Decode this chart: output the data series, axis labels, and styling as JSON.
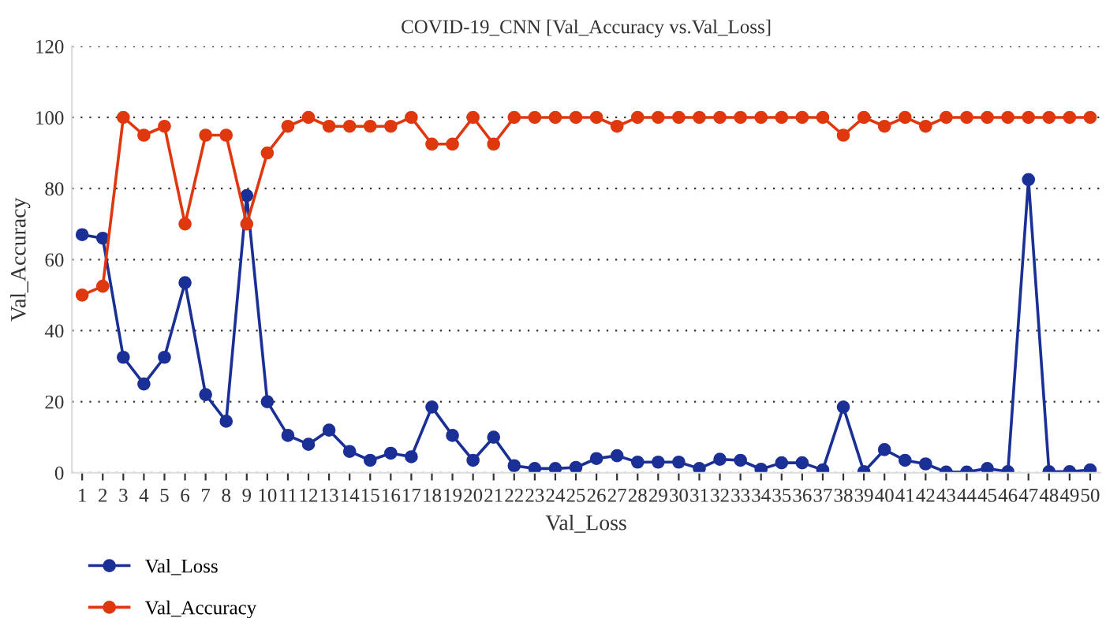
{
  "chart_data": {
    "type": "line",
    "title": "COVID-19_CNN [Val_Accuracy vs.Val_Loss]",
    "xlabel": "Val_Loss",
    "ylabel": "Val_Accuracy",
    "categories": [
      "1",
      "2",
      "3",
      "4",
      "5",
      "6",
      "7",
      "8",
      "9",
      "10",
      "11",
      "12",
      "13",
      "14",
      "15",
      "16",
      "17",
      "18",
      "19",
      "20",
      "21",
      "22",
      "23",
      "24",
      "25",
      "26",
      "27",
      "28",
      "29",
      "30",
      "31",
      "32",
      "33",
      "34",
      "35",
      "36",
      "37",
      "38",
      "39",
      "40",
      "41",
      "42",
      "43",
      "44",
      "45",
      "46",
      "47",
      "48",
      "49",
      "50"
    ],
    "series": [
      {
        "name": "Val_Loss",
        "color": "#1a3096",
        "values": [
          67,
          66,
          32.5,
          25,
          32.5,
          53.5,
          22,
          14.5,
          78,
          20,
          10.5,
          8,
          12,
          6,
          3.5,
          5.5,
          4.5,
          18.5,
          10.5,
          3.5,
          10,
          2,
          1.2,
          1.2,
          1.5,
          4,
          4.8,
          3,
          3,
          3,
          1.2,
          3.8,
          3.5,
          1,
          2.8,
          2.8,
          0.8,
          18.5,
          0.3,
          6.5,
          3.5,
          2.5,
          0.2,
          0.2,
          1.2,
          0.3,
          82.5,
          0.3,
          0.3,
          0.8
        ]
      },
      {
        "name": "Val_Accuracy",
        "color": "#e0380e",
        "values": [
          50,
          52.5,
          100,
          95,
          97.5,
          70,
          95,
          95,
          70,
          90,
          97.5,
          100,
          97.5,
          97.5,
          97.5,
          97.5,
          100,
          92.5,
          92.5,
          100,
          92.5,
          100,
          100,
          100,
          100,
          100,
          97.5,
          100,
          100,
          100,
          100,
          100,
          100,
          100,
          100,
          100,
          100,
          95,
          100,
          97.5,
          100,
          97.5,
          100,
          100,
          100,
          100,
          100,
          100,
          100,
          100
        ]
      }
    ],
    "ylim": [
      0,
      120
    ],
    "yticks": [
      0,
      20,
      40,
      60,
      80,
      100,
      120
    ],
    "grid": "y",
    "legend": "bottom left",
    "marker": "circle",
    "line_style": "solid"
  }
}
